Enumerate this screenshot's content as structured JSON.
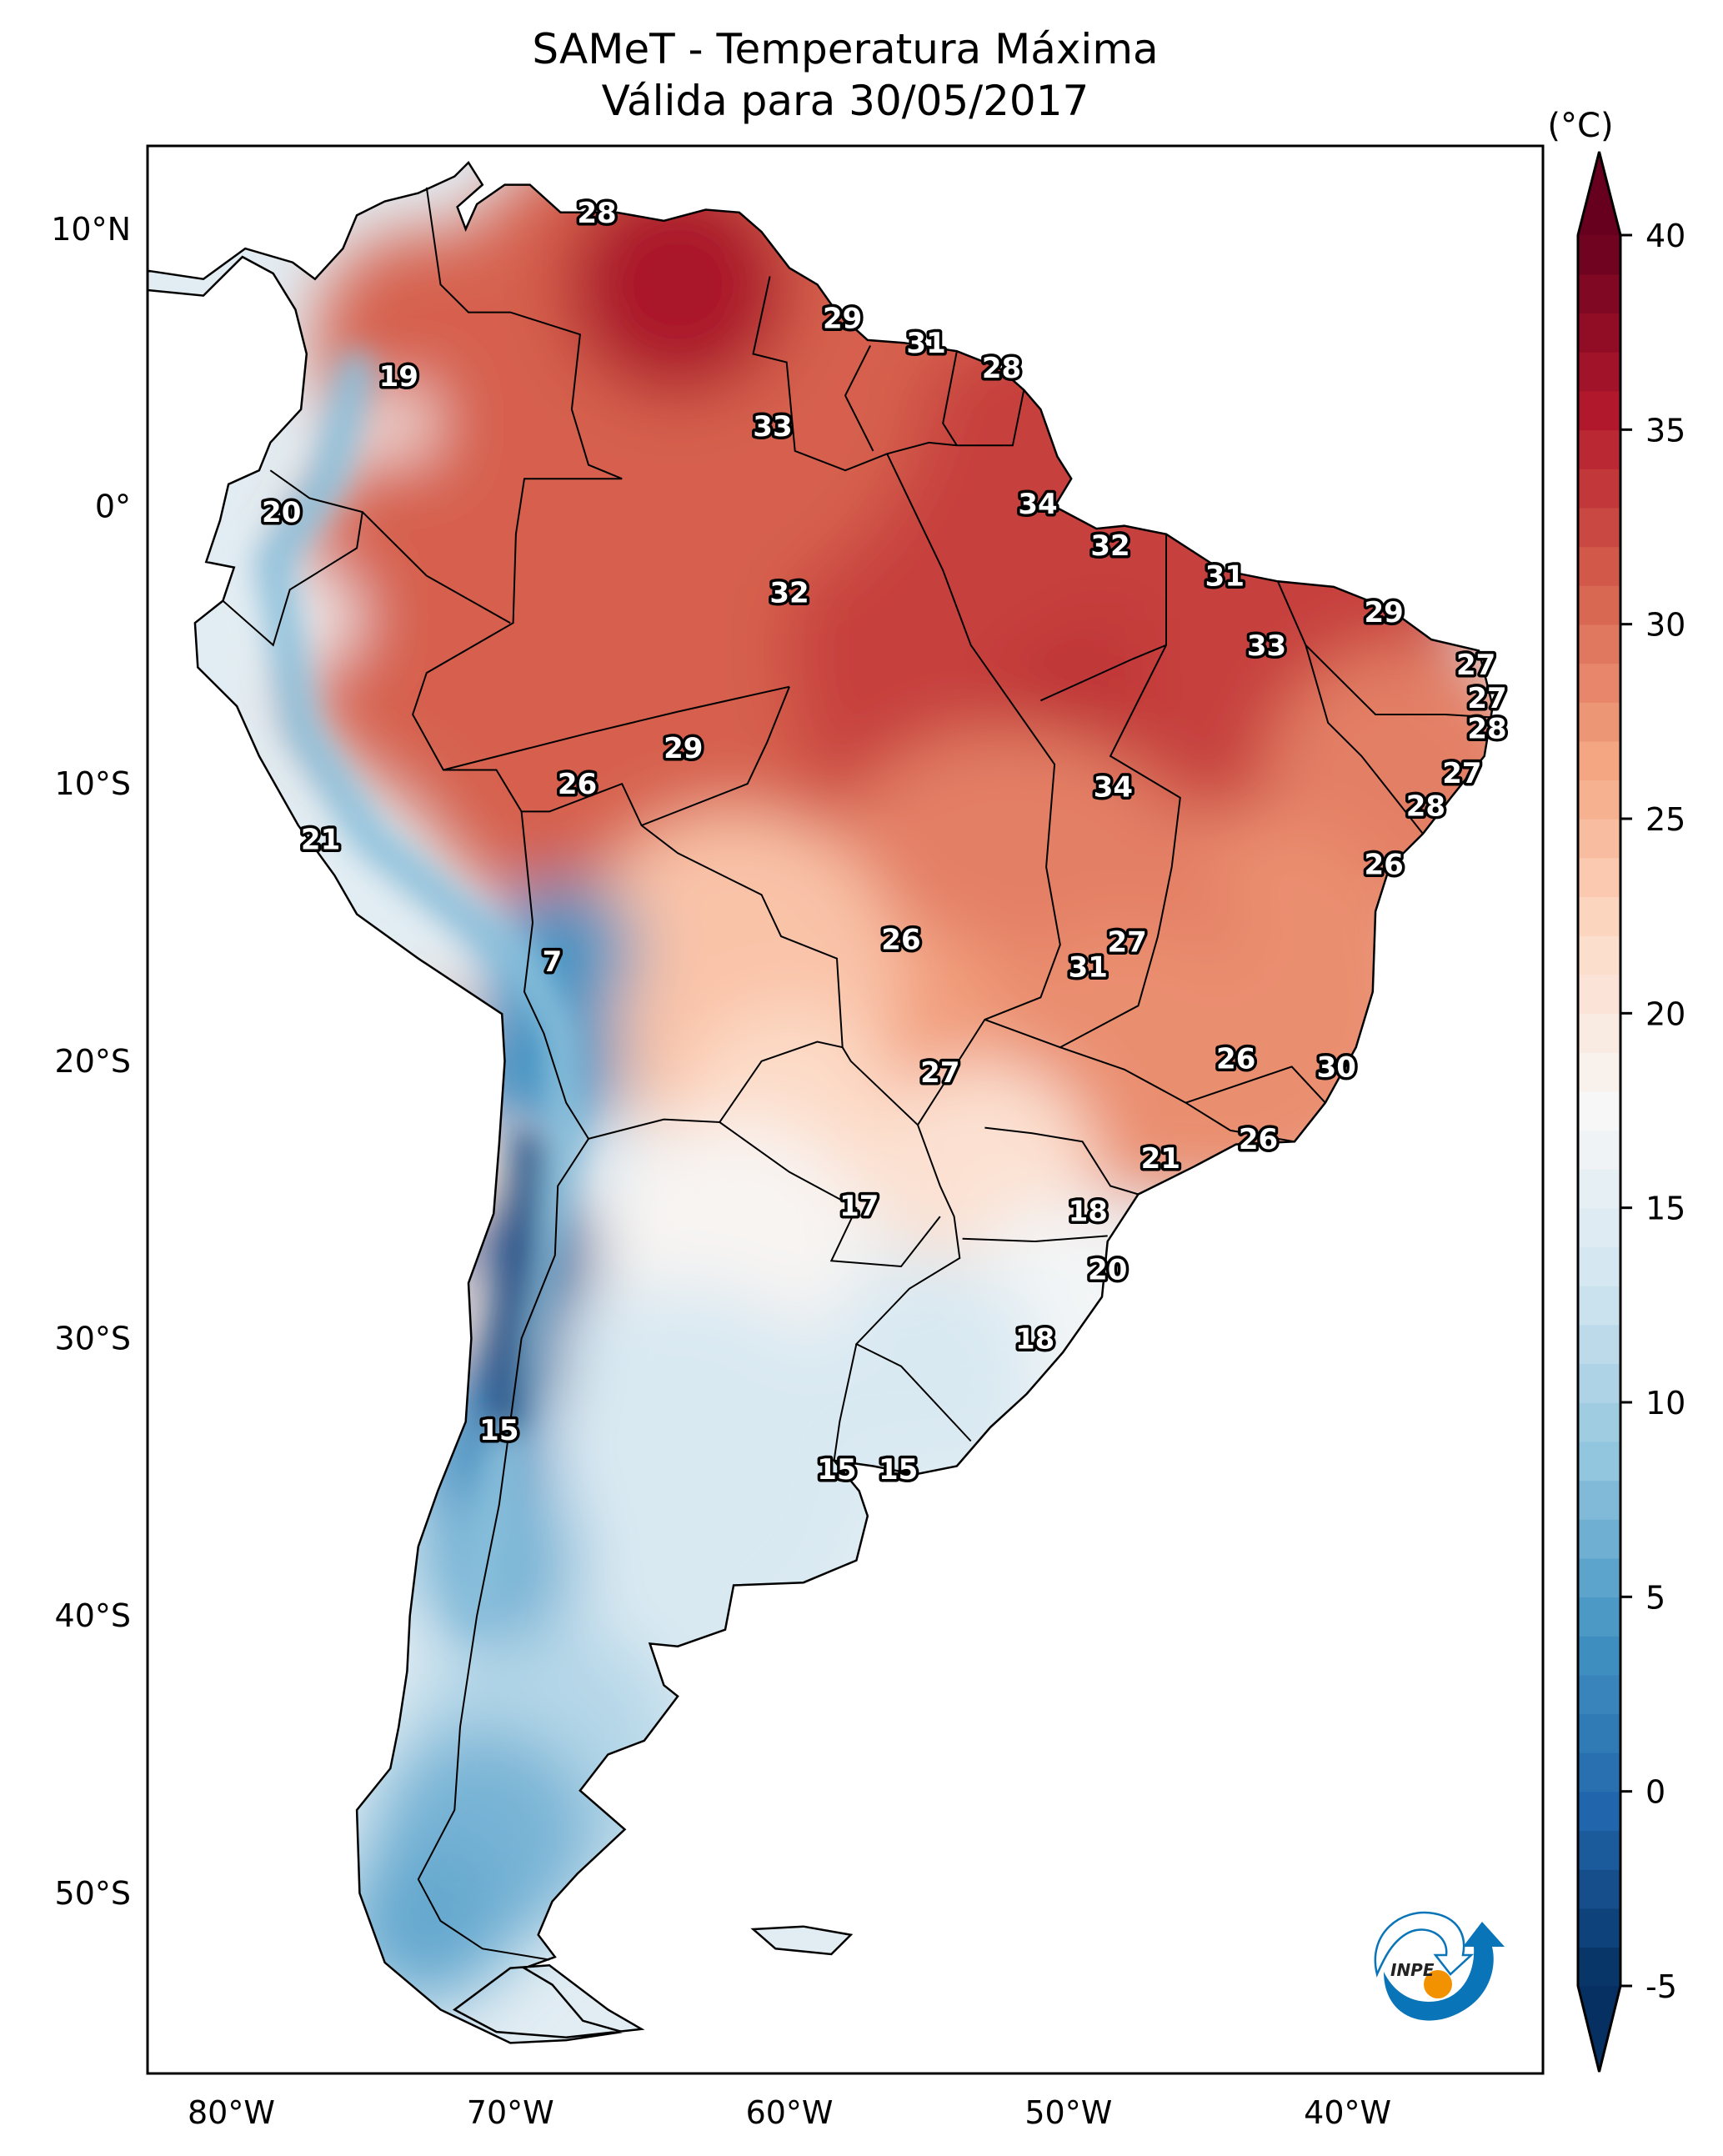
{
  "chart_data": {
    "type": "heatmap",
    "title": "SAMeT - Temperatura Máxima",
    "subtitle": "Válida para 30/05/2017",
    "colorbar": {
      "label": "(°C)",
      "min": -5,
      "max": 40,
      "extend": "both",
      "colormap": "RdBu_r",
      "ticks": [
        -5,
        0,
        5,
        10,
        15,
        20,
        25,
        30,
        35,
        40
      ],
      "tick_labels": [
        "-5",
        "0",
        "5",
        "10",
        "15",
        "20",
        "25",
        "30",
        "35",
        "40"
      ]
    },
    "x_axis": {
      "range": [
        -83,
        -33
      ],
      "ticks": [
        -80,
        -70,
        -60,
        -50,
        -40
      ],
      "tick_labels": [
        "80°W",
        "70°W",
        "60°W",
        "50°W",
        "40°W"
      ]
    },
    "y_axis": {
      "range": [
        -56.5,
        13
      ],
      "ticks": [
        10,
        0,
        -10,
        -20,
        -30,
        -40,
        -50
      ],
      "tick_labels": [
        "10°N",
        "0°",
        "10°S",
        "20°S",
        "30°S",
        "40°S",
        "50°S"
      ]
    },
    "grid": false,
    "legend": "colorbar-right",
    "labels": [
      {
        "text": "28",
        "lon": -66.9,
        "lat": 10.6
      },
      {
        "text": "19",
        "lon": -74.0,
        "lat": 4.7
      },
      {
        "text": "29",
        "lon": -58.1,
        "lat": 6.8
      },
      {
        "text": "31",
        "lon": -55.1,
        "lat": 5.9
      },
      {
        "text": "28",
        "lon": -52.4,
        "lat": 5.0
      },
      {
        "text": "33",
        "lon": -60.6,
        "lat": 2.9
      },
      {
        "text": "20",
        "lon": -78.2,
        "lat": -0.2
      },
      {
        "text": "34",
        "lon": -51.1,
        "lat": 0.1
      },
      {
        "text": "32",
        "lon": -48.5,
        "lat": -1.4
      },
      {
        "text": "32",
        "lon": -60.0,
        "lat": -3.1
      },
      {
        "text": "31",
        "lon": -44.4,
        "lat": -2.5
      },
      {
        "text": "29",
        "lon": -38.7,
        "lat": -3.8
      },
      {
        "text": "33",
        "lon": -42.9,
        "lat": -5.0
      },
      {
        "text": "27",
        "lon": -35.4,
        "lat": -5.7
      },
      {
        "text": "27",
        "lon": -35.0,
        "lat": -6.9
      },
      {
        "text": "28",
        "lon": -35.0,
        "lat": -8.0
      },
      {
        "text": "27",
        "lon": -35.9,
        "lat": -9.6
      },
      {
        "text": "28",
        "lon": -37.2,
        "lat": -10.8
      },
      {
        "text": "26",
        "lon": -38.7,
        "lat": -12.9
      },
      {
        "text": "29",
        "lon": -63.8,
        "lat": -8.7
      },
      {
        "text": "26",
        "lon": -67.6,
        "lat": -10.0
      },
      {
        "text": "34",
        "lon": -48.4,
        "lat": -10.1
      },
      {
        "text": "21",
        "lon": -76.8,
        "lat": -12.0
      },
      {
        "text": "26",
        "lon": -56.0,
        "lat": -15.6
      },
      {
        "text": "27",
        "lon": -47.9,
        "lat": -15.7
      },
      {
        "text": "31",
        "lon": -49.3,
        "lat": -16.6
      },
      {
        "text": "7",
        "lon": -68.5,
        "lat": -16.4
      },
      {
        "text": "26",
        "lon": -44.0,
        "lat": -19.9
      },
      {
        "text": "30",
        "lon": -40.4,
        "lat": -20.2
      },
      {
        "text": "27",
        "lon": -54.6,
        "lat": -20.4
      },
      {
        "text": "26",
        "lon": -43.2,
        "lat": -22.8
      },
      {
        "text": "21",
        "lon": -46.7,
        "lat": -23.5
      },
      {
        "text": "17",
        "lon": -57.5,
        "lat": -25.2
      },
      {
        "text": "18",
        "lon": -49.3,
        "lat": -25.4
      },
      {
        "text": "20",
        "lon": -48.6,
        "lat": -27.5
      },
      {
        "text": "18",
        "lon": -51.2,
        "lat": -30.0
      },
      {
        "text": "15",
        "lon": -70.4,
        "lat": -33.3
      },
      {
        "text": "15",
        "lon": -58.3,
        "lat": -34.7
      },
      {
        "text": "15",
        "lon": -56.1,
        "lat": -34.7
      }
    ]
  },
  "logo": {
    "text": "INPE",
    "colors": {
      "blue": "#0a74b8",
      "orange": "#f39200"
    }
  }
}
